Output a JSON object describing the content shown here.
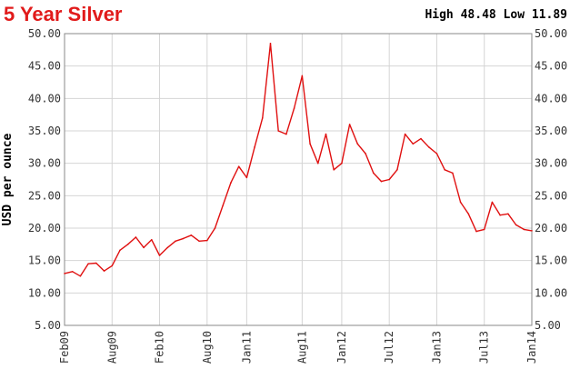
{
  "header": {
    "title": "5 Year Silver",
    "high_low": "High 48.48 Low 11.89"
  },
  "colors": {
    "title": "#e11b1b",
    "line": "#e01010",
    "grid": "#d4d4d4",
    "frame": "#8a8a8a"
  },
  "chart_data": {
    "type": "line",
    "title": "5 Year Silver",
    "ylabel": "USD per ounce",
    "xlabel": "",
    "ylim": [
      5,
      50
    ],
    "y_ticks": [
      "5.00",
      "10.00",
      "15.00",
      "20.00",
      "25.00",
      "30.00",
      "35.00",
      "40.00",
      "45.00",
      "50.00"
    ],
    "x_ticks": [
      "Feb09",
      "Aug09",
      "Feb10",
      "Aug10",
      "Jan11",
      "Aug11",
      "Jan12",
      "Jul12",
      "Jan13",
      "Jul13",
      "Jan14"
    ],
    "grid": true,
    "series": [
      {
        "values": [
          {
            "x": "Feb09",
            "y": 13.0
          },
          {
            "x": "Mar09",
            "y": 13.3
          },
          {
            "x": "Apr09",
            "y": 12.6
          },
          {
            "x": "May09",
            "y": 14.5
          },
          {
            "x": "Jun09",
            "y": 14.6
          },
          {
            "x": "Jul09",
            "y": 13.4
          },
          {
            "x": "Aug09",
            "y": 14.2
          },
          {
            "x": "Sep09",
            "y": 16.6
          },
          {
            "x": "Oct09",
            "y": 17.5
          },
          {
            "x": "Nov09",
            "y": 18.6
          },
          {
            "x": "Dec09",
            "y": 17.0
          },
          {
            "x": "Jan10",
            "y": 18.2
          },
          {
            "x": "Feb10",
            "y": 15.8
          },
          {
            "x": "Mar10",
            "y": 17.0
          },
          {
            "x": "Apr10",
            "y": 18.0
          },
          {
            "x": "May10",
            "y": 18.4
          },
          {
            "x": "Jun10",
            "y": 18.9
          },
          {
            "x": "Jul10",
            "y": 18.0
          },
          {
            "x": "Aug10",
            "y": 18.1
          },
          {
            "x": "Sep10",
            "y": 20.0
          },
          {
            "x": "Oct10",
            "y": 23.5
          },
          {
            "x": "Nov10",
            "y": 27.0
          },
          {
            "x": "Dec10",
            "y": 29.5
          },
          {
            "x": "Jan11",
            "y": 27.8
          },
          {
            "x": "Feb11",
            "y": 32.5
          },
          {
            "x": "Mar11",
            "y": 37.0
          },
          {
            "x": "Apr11",
            "y": 48.48
          },
          {
            "x": "May11",
            "y": 35.0
          },
          {
            "x": "Jun11",
            "y": 34.5
          },
          {
            "x": "Jul11",
            "y": 38.5
          },
          {
            "x": "Aug11",
            "y": 43.5
          },
          {
            "x": "Sep11",
            "y": 33.0
          },
          {
            "x": "Oct11",
            "y": 30.0
          },
          {
            "x": "Nov11",
            "y": 34.5
          },
          {
            "x": "Dec11",
            "y": 29.0
          },
          {
            "x": "Jan12",
            "y": 30.0
          },
          {
            "x": "Feb12",
            "y": 36.0
          },
          {
            "x": "Mar12",
            "y": 33.0
          },
          {
            "x": "Apr12",
            "y": 31.5
          },
          {
            "x": "May12",
            "y": 28.5
          },
          {
            "x": "Jun12",
            "y": 27.2
          },
          {
            "x": "Jul12",
            "y": 27.5
          },
          {
            "x": "Aug12",
            "y": 29.0
          },
          {
            "x": "Sep12",
            "y": 34.5
          },
          {
            "x": "Oct12",
            "y": 33.0
          },
          {
            "x": "Nov12",
            "y": 33.8
          },
          {
            "x": "Dec12",
            "y": 32.5
          },
          {
            "x": "Jan13",
            "y": 31.5
          },
          {
            "x": "Feb13",
            "y": 29.0
          },
          {
            "x": "Mar13",
            "y": 28.5
          },
          {
            "x": "Apr13",
            "y": 24.0
          },
          {
            "x": "May13",
            "y": 22.2
          },
          {
            "x": "Jun13",
            "y": 19.5
          },
          {
            "x": "Jul13",
            "y": 19.8
          },
          {
            "x": "Aug13",
            "y": 24.0
          },
          {
            "x": "Sep13",
            "y": 22.0
          },
          {
            "x": "Oct13",
            "y": 22.2
          },
          {
            "x": "Nov13",
            "y": 20.5
          },
          {
            "x": "Dec13",
            "y": 19.8
          },
          {
            "x": "Jan14",
            "y": 19.6
          }
        ]
      }
    ]
  }
}
